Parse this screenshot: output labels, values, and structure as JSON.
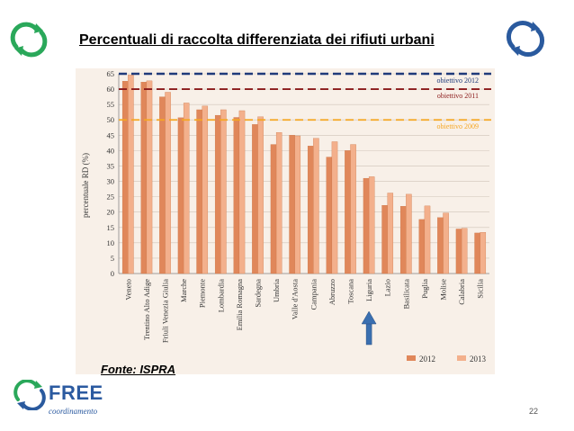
{
  "slide": {
    "title": "Percentuali di raccolta differenziata dei rifiuti urbani",
    "source": "Fonte: ISPRA",
    "page_number": "22",
    "logo_name": "FREE",
    "logo_sub": "coordinamento"
  },
  "colors": {
    "bar2012": "#e0875a",
    "bar2013": "#f3b08c",
    "target2012": "#1f3a7a",
    "target2011": "#8b1a1a",
    "target2009": "#f5a623",
    "arrow": "#3a6fb0"
  },
  "chart_data": {
    "type": "bar",
    "ylabel": "percentuale RD (%)",
    "ylim": [
      0,
      65
    ],
    "yticks": [
      0,
      5,
      10,
      15,
      20,
      25,
      30,
      35,
      40,
      45,
      50,
      55,
      60,
      65
    ],
    "categories": [
      "Veneto",
      "Trentino Alto Adige",
      "Friuli Venezia Giulia",
      "Marche",
      "Piemonte",
      "Lombardia",
      "Emilia Romagna",
      "Sardegna",
      "Umbria",
      "Valle d'Aosta",
      "Campania",
      "Abruzzo",
      "Toscana",
      "Liguria",
      "Lazio",
      "Basilicata",
      "Puglia",
      "Molise",
      "Calabria",
      "Sicilia"
    ],
    "series": [
      {
        "name": "2012",
        "values": [
          62.6,
          62.3,
          57.5,
          50.7,
          53.3,
          51.5,
          50.8,
          48.5,
          42.0,
          45.0,
          41.5,
          37.9,
          40.0,
          31.0,
          22.2,
          21.9,
          17.6,
          18.2,
          14.5,
          13.2
        ]
      },
      {
        "name": "2013",
        "values": [
          64.6,
          62.7,
          59.0,
          55.5,
          54.5,
          53.3,
          53.0,
          51.0,
          45.9,
          44.8,
          44.0,
          42.9,
          42.0,
          31.5,
          26.2,
          25.8,
          22.0,
          19.7,
          14.7,
          13.4
        ]
      }
    ],
    "targets": [
      {
        "label": "obiettivo 2012",
        "value": 65
      },
      {
        "label": "obiettivo 2011",
        "value": 60
      },
      {
        "label": "obiettivo 2009",
        "value": 50
      }
    ],
    "highlight_category": "Liguria"
  }
}
